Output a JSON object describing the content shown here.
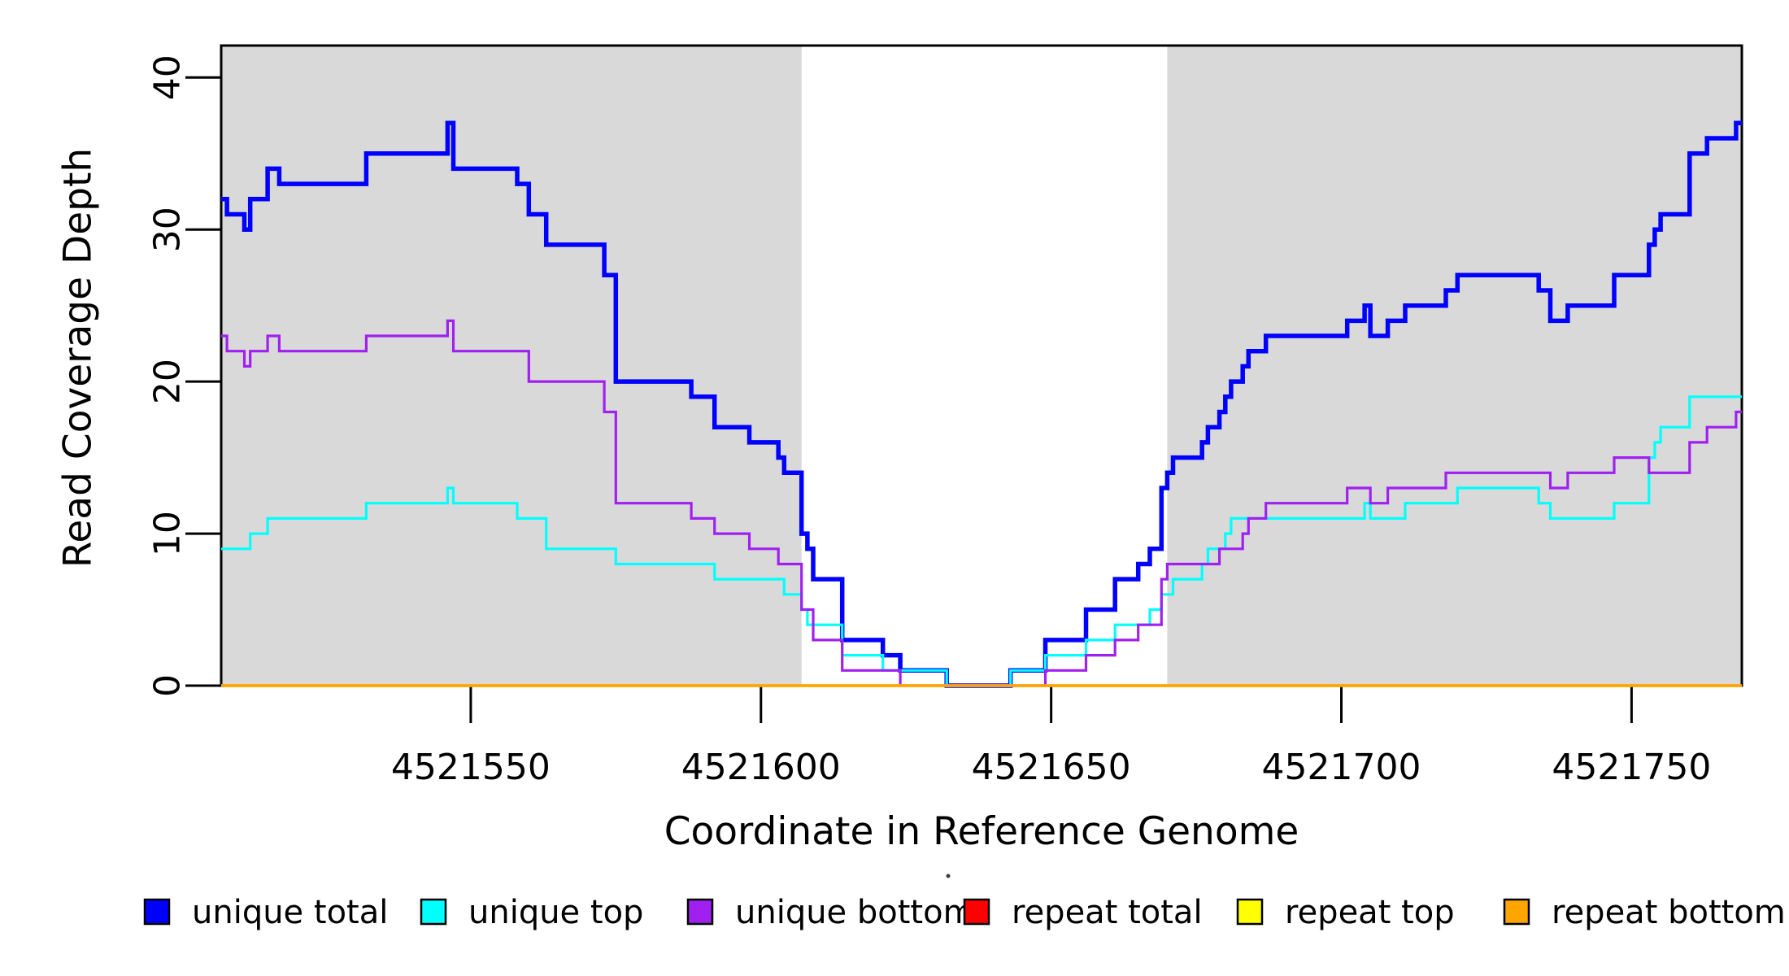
{
  "chart_data": {
    "type": "line",
    "subtype": "step-coverage",
    "title": "",
    "xlabel": "Coordinate in Reference Genome",
    "ylabel": "Read Coverage Depth",
    "xlim": [
      4521507,
      4521769
    ],
    "ylim": [
      0,
      42
    ],
    "x_ticks": [
      4521550,
      4521600,
      4521650,
      4521700,
      4521750
    ],
    "y_ticks": [
      0,
      10,
      20,
      30,
      40
    ],
    "grid": false,
    "legend_position": "bottom",
    "background_color": "#FFFFFF",
    "shaded_regions": [
      {
        "x0": 4521507,
        "x1": 4521607,
        "color": "#D9D9D9"
      },
      {
        "x0": 4521670,
        "x1": 4521769,
        "color": "#D9D9D9"
      }
    ],
    "series": [
      {
        "name": "unique total",
        "color": "#0000FF",
        "line_width": 5.5,
        "steps": [
          [
            4521507,
            32
          ],
          [
            4521508,
            31
          ],
          [
            4521511,
            30
          ],
          [
            4521512,
            32
          ],
          [
            4521515,
            34
          ],
          [
            4521517,
            33
          ],
          [
            4521532,
            35
          ],
          [
            4521546,
            37
          ],
          [
            4521547,
            34
          ],
          [
            4521558,
            33
          ],
          [
            4521560,
            31
          ],
          [
            4521563,
            29
          ],
          [
            4521573,
            27
          ],
          [
            4521575,
            20
          ],
          [
            4521588,
            19
          ],
          [
            4521592,
            17
          ],
          [
            4521598,
            16
          ],
          [
            4521603,
            15
          ],
          [
            4521604,
            14
          ],
          [
            4521607,
            10
          ],
          [
            4521608,
            9
          ],
          [
            4521609,
            7
          ],
          [
            4521614,
            3
          ],
          [
            4521621,
            2
          ],
          [
            4521624,
            1
          ],
          [
            4521632,
            0
          ],
          [
            4521643,
            1
          ],
          [
            4521649,
            3
          ],
          [
            4521656,
            5
          ],
          [
            4521661,
            7
          ],
          [
            4521665,
            8
          ],
          [
            4521667,
            9
          ],
          [
            4521669,
            13
          ],
          [
            4521670,
            14
          ],
          [
            4521671,
            15
          ],
          [
            4521676,
            16
          ],
          [
            4521677,
            17
          ],
          [
            4521679,
            18
          ],
          [
            4521680,
            19
          ],
          [
            4521681,
            20
          ],
          [
            4521683,
            21
          ],
          [
            4521684,
            22
          ],
          [
            4521687,
            23
          ],
          [
            4521701,
            24
          ],
          [
            4521704,
            25
          ],
          [
            4521705,
            23
          ],
          [
            4521708,
            24
          ],
          [
            4521711,
            25
          ],
          [
            4521718,
            26
          ],
          [
            4521720,
            27
          ],
          [
            4521734,
            26
          ],
          [
            4521736,
            24
          ],
          [
            4521739,
            25
          ],
          [
            4521747,
            27
          ],
          [
            4521753,
            29
          ],
          [
            4521754,
            30
          ],
          [
            4521755,
            31
          ],
          [
            4521760,
            35
          ],
          [
            4521763,
            36
          ],
          [
            4521768,
            37
          ]
        ]
      },
      {
        "name": "unique top",
        "color": "#00FFFF",
        "line_width": 3.2,
        "steps": [
          [
            4521507,
            9
          ],
          [
            4521512,
            10
          ],
          [
            4521515,
            11
          ],
          [
            4521532,
            12
          ],
          [
            4521546,
            13
          ],
          [
            4521547,
            12
          ],
          [
            4521558,
            11
          ],
          [
            4521563,
            9
          ],
          [
            4521575,
            8
          ],
          [
            4521592,
            7
          ],
          [
            4521604,
            6
          ],
          [
            4521607,
            5
          ],
          [
            4521608,
            4
          ],
          [
            4521614,
            2
          ],
          [
            4521621,
            1
          ],
          [
            4521632,
            0
          ],
          [
            4521643,
            1
          ],
          [
            4521649,
            2
          ],
          [
            4521656,
            3
          ],
          [
            4521661,
            4
          ],
          [
            4521667,
            5
          ],
          [
            4521669,
            6
          ],
          [
            4521671,
            7
          ],
          [
            4521676,
            8
          ],
          [
            4521677,
            9
          ],
          [
            4521680,
            10
          ],
          [
            4521681,
            11
          ],
          [
            4521704,
            12
          ],
          [
            4521705,
            11
          ],
          [
            4521711,
            12
          ],
          [
            4521720,
            13
          ],
          [
            4521734,
            12
          ],
          [
            4521736,
            11
          ],
          [
            4521747,
            12
          ],
          [
            4521753,
            15
          ],
          [
            4521754,
            16
          ],
          [
            4521755,
            17
          ],
          [
            4521760,
            19
          ]
        ]
      },
      {
        "name": "unique bottom",
        "color": "#A020F0",
        "line_width": 3.2,
        "steps": [
          [
            4521507,
            23
          ],
          [
            4521508,
            22
          ],
          [
            4521511,
            21
          ],
          [
            4521512,
            22
          ],
          [
            4521515,
            23
          ],
          [
            4521517,
            22
          ],
          [
            4521532,
            23
          ],
          [
            4521546,
            24
          ],
          [
            4521547,
            22
          ],
          [
            4521560,
            20
          ],
          [
            4521573,
            18
          ],
          [
            4521575,
            12
          ],
          [
            4521588,
            11
          ],
          [
            4521592,
            10
          ],
          [
            4521598,
            9
          ],
          [
            4521603,
            8
          ],
          [
            4521607,
            5
          ],
          [
            4521609,
            3
          ],
          [
            4521614,
            1
          ],
          [
            4521624,
            0
          ],
          [
            4521649,
            1
          ],
          [
            4521656,
            2
          ],
          [
            4521661,
            3
          ],
          [
            4521665,
            4
          ],
          [
            4521669,
            7
          ],
          [
            4521670,
            8
          ],
          [
            4521679,
            9
          ],
          [
            4521683,
            10
          ],
          [
            4521684,
            11
          ],
          [
            4521687,
            12
          ],
          [
            4521701,
            13
          ],
          [
            4521705,
            12
          ],
          [
            4521708,
            13
          ],
          [
            4521718,
            14
          ],
          [
            4521736,
            13
          ],
          [
            4521739,
            14
          ],
          [
            4521747,
            15
          ],
          [
            4521753,
            14
          ],
          [
            4521760,
            16
          ],
          [
            4521763,
            17
          ],
          [
            4521768,
            18
          ]
        ]
      },
      {
        "name": "repeat total",
        "color": "#FF0000",
        "line_width": 3.2,
        "steps": [
          [
            4521507,
            0
          ]
        ]
      },
      {
        "name": "repeat top",
        "color": "#FFFF00",
        "line_width": 3.2,
        "steps": [
          [
            4521507,
            0
          ]
        ]
      },
      {
        "name": "repeat bottom",
        "color": "#FFA500",
        "line_width": 3.5,
        "steps": [
          [
            4521507,
            0
          ]
        ]
      }
    ],
    "legend": [
      {
        "label": "unique total",
        "color": "#0000FF"
      },
      {
        "label": "unique top",
        "color": "#00FFFF"
      },
      {
        "label": "unique bottom",
        "color": "#A020F0"
      },
      {
        "label": "repeat total",
        "color": "#FF0000"
      },
      {
        "label": "repeat top",
        "color": "#FFFF00"
      },
      {
        "label": "repeat bottom",
        "color": "#FFA500"
      }
    ]
  }
}
